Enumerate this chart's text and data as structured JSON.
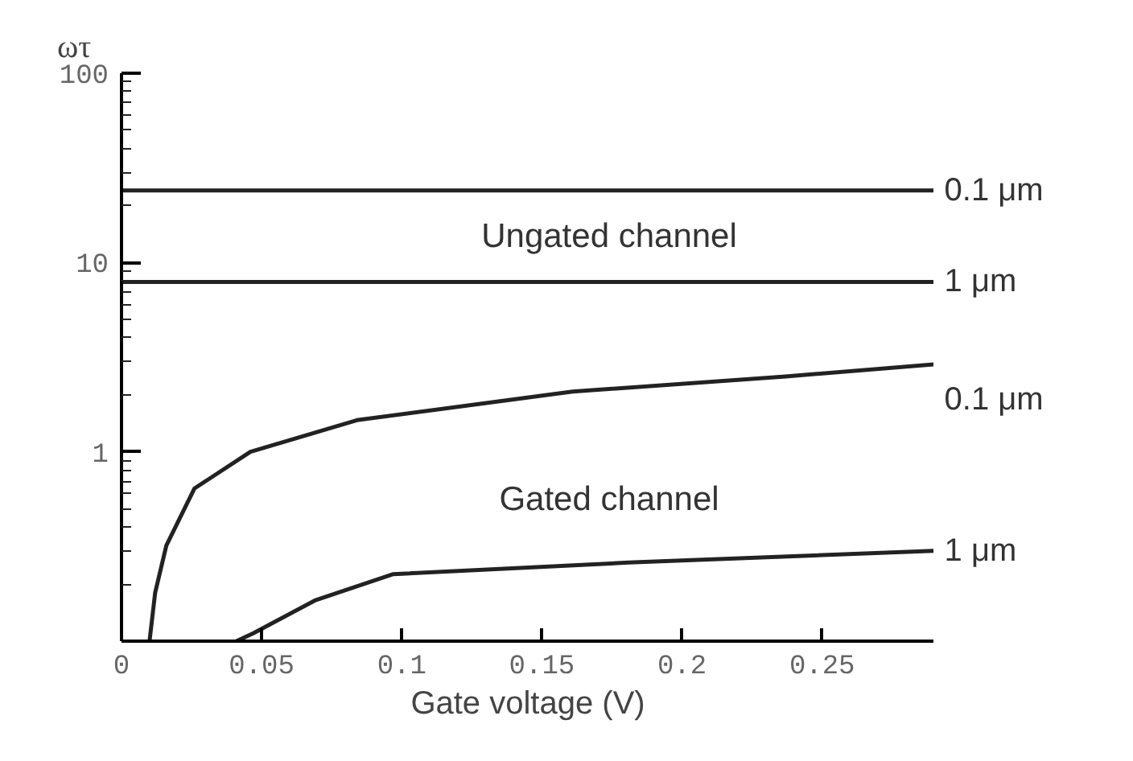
{
  "chart_data": {
    "type": "line",
    "xlabel": "Gate voltage (V)",
    "ylabel": "ωτ",
    "log": "y",
    "xlim": [
      0,
      0.29
    ],
    "ylim": [
      0.1,
      100
    ],
    "xticks": [
      0,
      0.05,
      0.1,
      0.15,
      0.2,
      0.25
    ],
    "yticks": [
      1,
      10,
      100
    ],
    "grid": false,
    "series": [
      {
        "name": "0.1 μm",
        "color": "#222222",
        "x": [
          0,
          0.29
        ],
        "values": [
          24,
          24
        ]
      },
      {
        "name": "1 μm",
        "color": "#222222",
        "x": [
          0,
          0.29
        ],
        "values": [
          7.9,
          7.9
        ]
      },
      {
        "name": "0.1 μm",
        "color": "#222222",
        "x": [
          0.01,
          0.012,
          0.016,
          0.026,
          0.046,
          0.084,
          0.161,
          0.237,
          0.29
        ],
        "values": [
          0.1,
          0.18,
          0.32,
          0.64,
          1.0,
          1.47,
          2.08,
          2.5,
          2.9
        ]
      },
      {
        "name": "1 μm",
        "color": "#222222",
        "x": [
          0.041,
          0.047,
          0.069,
          0.097,
          0.181,
          0.29
        ],
        "values": [
          0.1,
          0.11,
          0.164,
          0.226,
          0.26,
          0.3
        ]
      }
    ],
    "annotations": [
      "Ungated channel",
      "Gated channel"
    ]
  }
}
